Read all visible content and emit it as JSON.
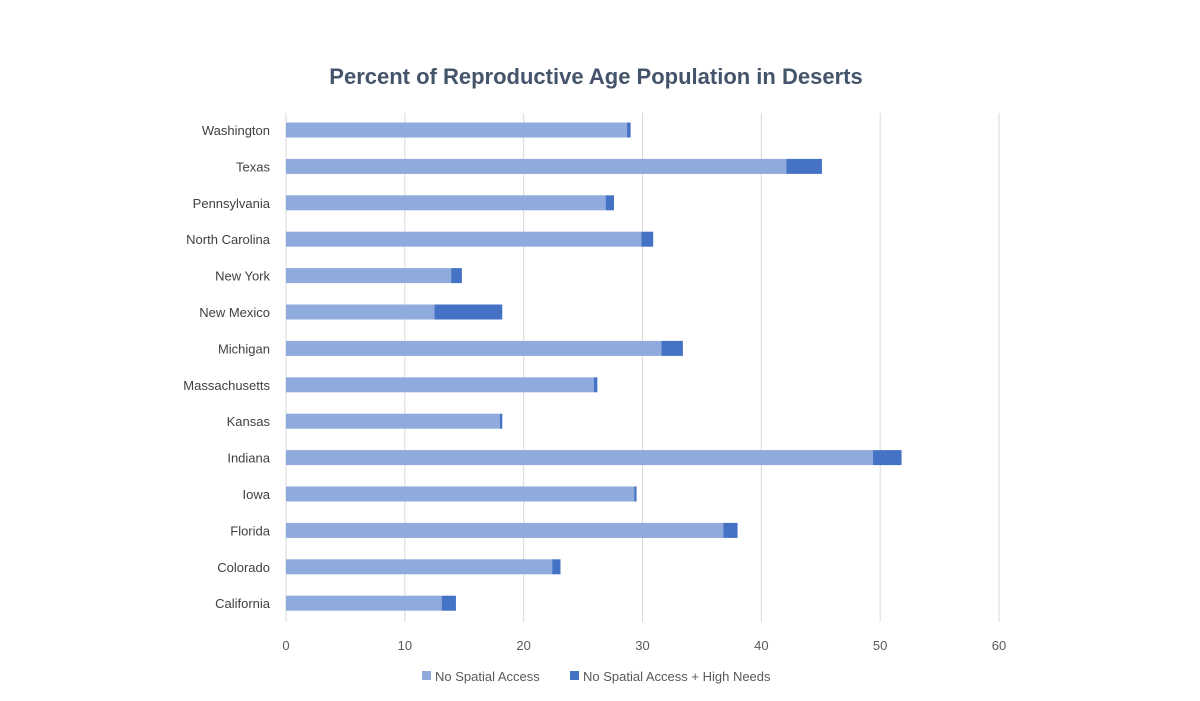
{
  "chart_data": {
    "type": "bar",
    "orientation": "horizontal",
    "stacked": true,
    "title": "Percent of Reproductive Age Population in Deserts",
    "xlabel": "",
    "ylabel": "",
    "xlim": [
      0,
      60
    ],
    "x_ticks": [
      "0",
      "10",
      "20",
      "30",
      "40",
      "50",
      "60"
    ],
    "grid": "vertical",
    "legend_position": "bottom",
    "categories": [
      "Washington",
      "Texas",
      "Pennsylvania",
      "North Carolina",
      "New York",
      "New Mexico",
      "Michigan",
      "Massachusetts",
      "Kansas",
      "Indiana",
      "Iowa",
      "Florida",
      "Colorado",
      "California"
    ],
    "series": [
      {
        "name": "No Spatial Access",
        "color": "#8FAADC",
        "values": [
          28.7,
          42.1,
          26.9,
          29.9,
          13.9,
          12.5,
          31.6,
          25.9,
          18.0,
          49.4,
          29.3,
          36.8,
          22.4,
          13.1
        ]
      },
      {
        "name": "No Spatial Access + High Needs",
        "color": "#4472C4",
        "values": [
          0.3,
          3.0,
          0.7,
          1.0,
          0.9,
          5.7,
          1.8,
          0.3,
          0.2,
          2.4,
          0.2,
          1.2,
          0.7,
          1.2
        ]
      }
    ]
  }
}
